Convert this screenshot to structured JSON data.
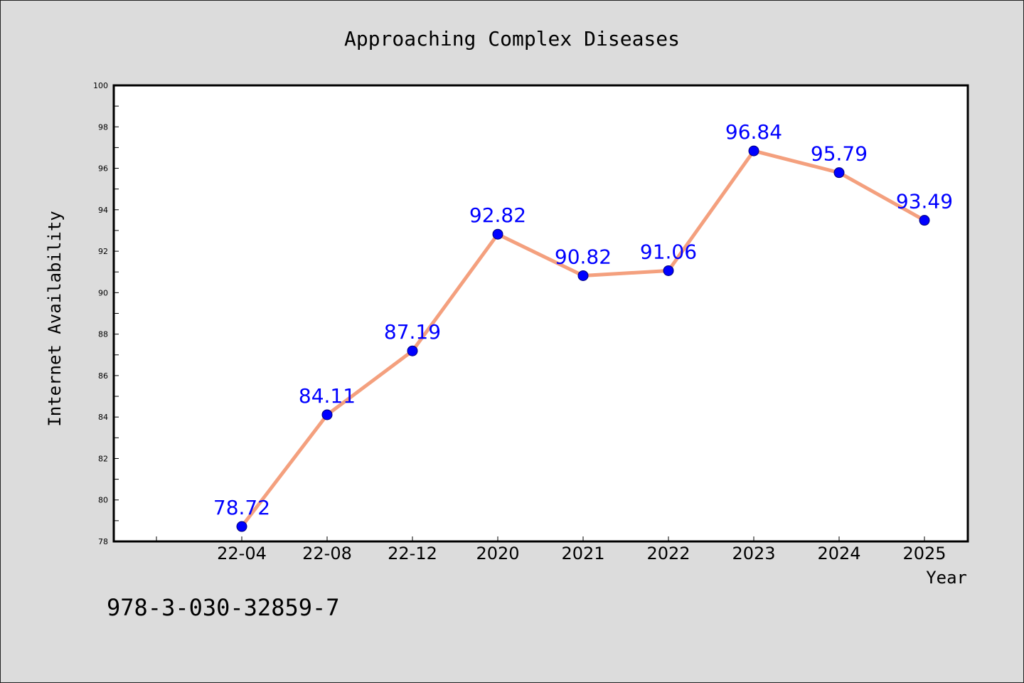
{
  "chart_data": {
    "type": "line",
    "title": "Approaching Complex Diseases",
    "xlabel": "Year",
    "ylabel": "Internet Availability",
    "categories": [
      "22-04",
      "22-08",
      "22-12",
      "2020",
      "2021",
      "2022",
      "2023",
      "2024",
      "2025"
    ],
    "series": [
      {
        "values": [
          78.72,
          84.11,
          87.19,
          92.82,
          90.82,
          91.06,
          96.84,
          95.79,
          93.49
        ]
      }
    ],
    "ylim": [
      78,
      100
    ],
    "yticks": [
      78,
      80,
      82,
      84,
      86,
      88,
      90,
      92,
      94,
      96,
      98,
      100
    ],
    "grid": false,
    "colors": {
      "line": "#f4a07e",
      "marker": "#0000ff",
      "data_label": "#0000ff"
    }
  },
  "footnote": "978-3-030-32859-7"
}
